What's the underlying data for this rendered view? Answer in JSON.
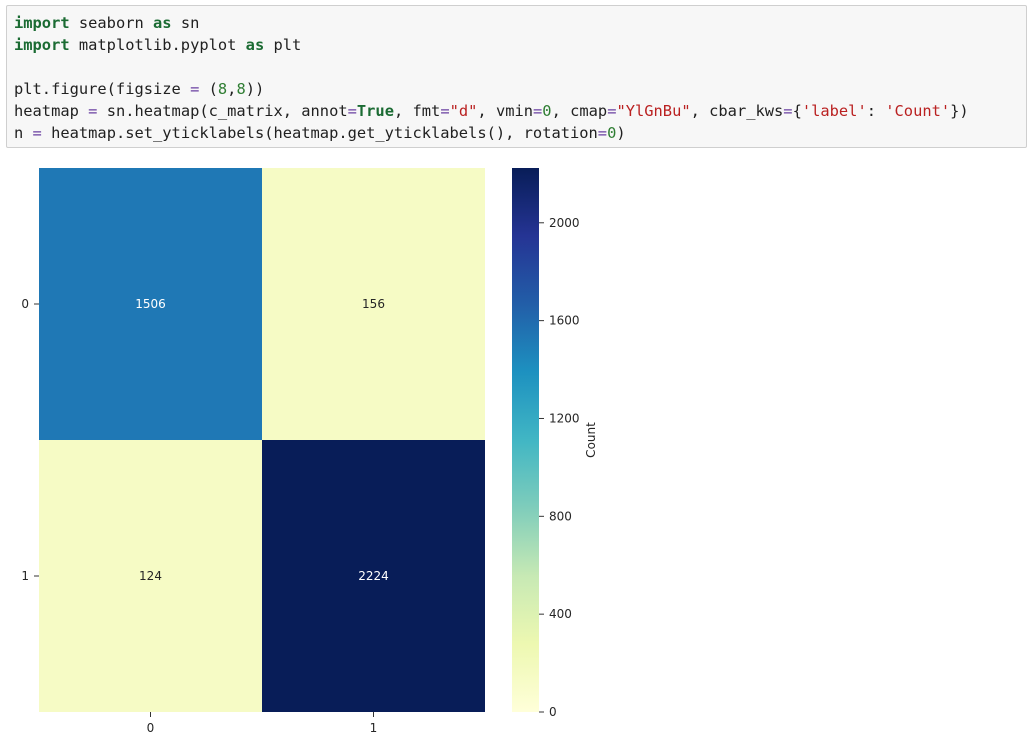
{
  "code_cell": {
    "lines": [
      [
        {
          "t": "import",
          "c": "kw"
        },
        {
          "t": " seaborn "
        },
        {
          "t": "as",
          "c": "kw"
        },
        {
          "t": " sn"
        }
      ],
      [
        {
          "t": "import",
          "c": "kw"
        },
        {
          "t": " matplotlib.pyplot "
        },
        {
          "t": "as",
          "c": "kw"
        },
        {
          "t": " plt"
        }
      ],
      [],
      [
        {
          "t": "plt.figure(figsize "
        },
        {
          "t": "=",
          "c": "op"
        },
        {
          "t": " ("
        },
        {
          "t": "8",
          "c": "num"
        },
        {
          "t": ","
        },
        {
          "t": "8",
          "c": "num"
        },
        {
          "t": "))"
        }
      ],
      [
        {
          "t": "heatmap "
        },
        {
          "t": "=",
          "c": "op"
        },
        {
          "t": " sn.heatmap(c_matrix, annot"
        },
        {
          "t": "=",
          "c": "op"
        },
        {
          "t": "True",
          "c": "kw"
        },
        {
          "t": ", fmt"
        },
        {
          "t": "=",
          "c": "op"
        },
        {
          "t": "\"d\"",
          "c": "str"
        },
        {
          "t": ", vmin"
        },
        {
          "t": "=",
          "c": "op"
        },
        {
          "t": "0",
          "c": "num"
        },
        {
          "t": ", cmap"
        },
        {
          "t": "=",
          "c": "op"
        },
        {
          "t": "\"YlGnBu\"",
          "c": "str"
        },
        {
          "t": ", cbar_kws"
        },
        {
          "t": "=",
          "c": "op"
        },
        {
          "t": "{"
        },
        {
          "t": "'label'",
          "c": "str"
        },
        {
          "t": ": "
        },
        {
          "t": "'Count'",
          "c": "str"
        },
        {
          "t": "})"
        }
      ],
      [
        {
          "t": "n "
        },
        {
          "t": "=",
          "c": "op"
        },
        {
          "t": " heatmap.set_yticklabels(heatmap.get_yticklabels(), rotation"
        },
        {
          "t": "=",
          "c": "op"
        },
        {
          "t": "0",
          "c": "num"
        },
        {
          "t": ")"
        }
      ]
    ]
  },
  "chart_data": {
    "type": "heatmap",
    "rows": [
      "0",
      "1"
    ],
    "columns": [
      "0",
      "1"
    ],
    "values": [
      [
        1506,
        156
      ],
      [
        124,
        2224
      ]
    ],
    "colors": [
      [
        "#1f78b5",
        "#f6fbc5"
      ],
      [
        "#f6fbc5",
        "#081d58"
      ]
    ],
    "annotation_colors": [
      [
        "#ffffff",
        "#262626"
      ],
      [
        "#262626",
        "#ffffff"
      ]
    ],
    "colorbar": {
      "label": "Count",
      "vmin": 0,
      "vmax": 2224,
      "ticks": [
        0,
        400,
        800,
        1200,
        1600,
        2000
      ],
      "tick_labels": [
        "0",
        "400",
        "800",
        "1200",
        "1600",
        "2000"
      ],
      "colormap": "YlGnBu"
    }
  }
}
